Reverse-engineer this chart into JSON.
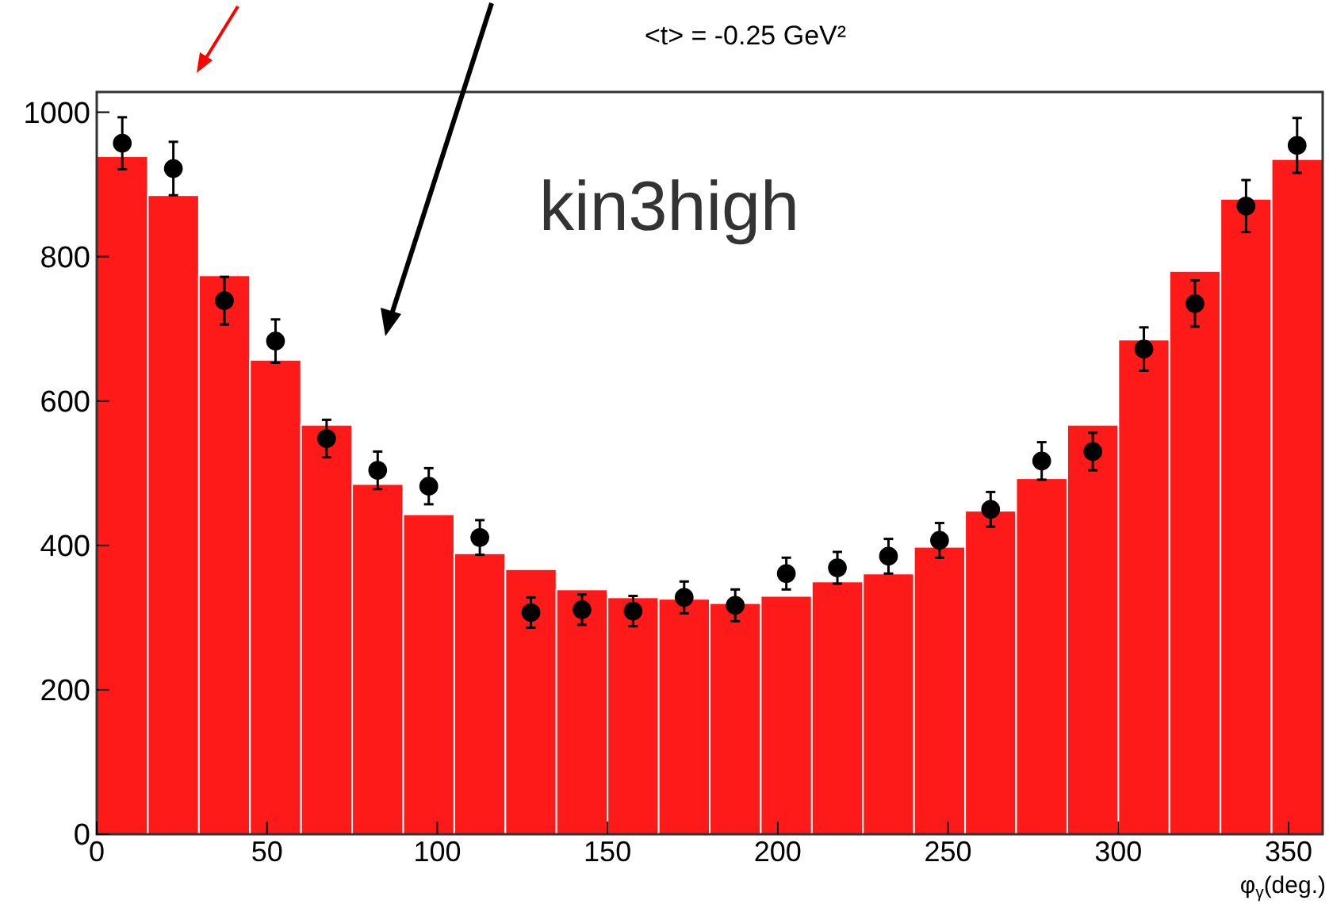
{
  "chart_data": {
    "type": "histogram",
    "xlabel": "φ$_{γ}$(deg.)",
    "annotations": [
      "<t> = -0.25 GeV²",
      "kin3high"
    ],
    "bins": [
      0,
      15,
      30,
      45,
      60,
      75,
      90,
      105,
      120,
      135,
      150,
      165,
      180,
      195,
      210,
      225,
      240,
      255,
      270,
      285,
      300,
      315,
      330,
      345,
      360
    ],
    "series": [
      {
        "type": "histogram",
        "color": "#ff1a1a",
        "values": [
          939,
          885,
          774,
          657,
          567,
          485,
          443,
          389,
          367,
          339,
          328,
          326,
          320,
          330,
          350,
          361,
          398,
          448,
          493,
          567,
          685,
          780,
          880,
          935
        ]
      },
      {
        "type": "scatter",
        "color": "#000000",
        "marker": "circle",
        "x": [
          7.5,
          22.5,
          37.5,
          52.5,
          67.5,
          82.5,
          97.5,
          112.5,
          127.5,
          142.5,
          157.5,
          172.5,
          187.5,
          202.5,
          217.5,
          232.5,
          247.5,
          262.5,
          277.5,
          292.5,
          307.5,
          322.5,
          337.5,
          352.5
        ],
        "values": [
          957,
          922,
          739,
          683,
          548,
          504,
          482,
          411,
          307,
          311,
          309,
          328,
          317,
          361,
          369,
          385,
          407,
          450,
          517,
          530,
          672,
          735,
          870,
          954
        ],
        "errors": [
          36,
          37,
          33,
          30,
          26,
          26,
          25,
          24,
          21,
          21,
          21,
          22,
          22,
          22,
          22,
          24,
          24,
          24,
          26,
          26,
          30,
          32,
          36,
          38
        ]
      }
    ],
    "xlim": [
      0,
      360
    ],
    "ylim": [
      0,
      1028
    ],
    "xticks": [
      0,
      50,
      100,
      150,
      200,
      250,
      300,
      350
    ],
    "yticks": [
      0,
      200,
      400,
      600,
      800,
      1000
    ],
    "grid": false
  }
}
